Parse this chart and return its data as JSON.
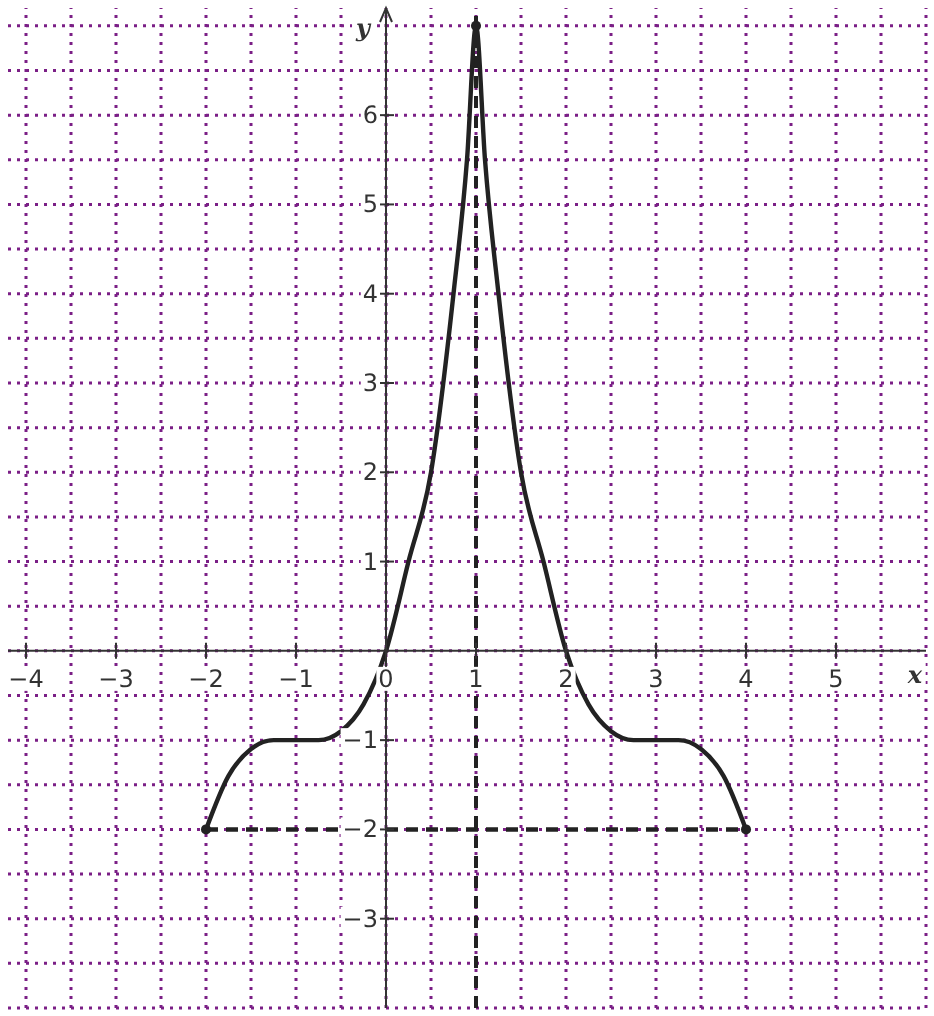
{
  "chart_data": {
    "type": "line",
    "xlabel": "x",
    "ylabel": "y",
    "xlim": [
      -4.2,
      6
    ],
    "ylim": [
      -4,
      7.2
    ],
    "xticks": [
      {
        "value": -4,
        "label": "−4"
      },
      {
        "value": -3,
        "label": "−3"
      },
      {
        "value": -2,
        "label": "−2"
      },
      {
        "value": -1,
        "label": "−1"
      },
      0,
      1,
      2,
      3,
      4,
      5
    ],
    "yticks": [
      {
        "value": -3,
        "label": "−3"
      },
      {
        "value": -2,
        "label": "−2"
      },
      {
        "value": -1,
        "label": "−1"
      },
      1,
      2,
      3,
      4,
      5,
      6
    ],
    "grid": true,
    "ref_lines": [
      {
        "axis": "x",
        "value": 1,
        "color": "#222222",
        "line_style": "dashed"
      }
    ],
    "series": [
      {
        "color": "#222222",
        "line_style": "solid",
        "x": [
          -2,
          -1.75,
          -1.5,
          -1.25,
          -1,
          -0.75,
          -0.5,
          -0.25,
          0,
          0.25,
          0.5,
          0.75,
          0.9,
          1,
          1.1,
          1.25,
          1.5,
          1.75,
          2,
          2.25,
          2.5,
          2.75,
          3,
          3.25,
          3.5,
          3.75,
          4
        ],
        "values": [
          -2,
          -1.4,
          -1.1,
          -1,
          -1,
          -1,
          -0.9,
          -0.6,
          0,
          1,
          2,
          4,
          5.5,
          7,
          5.5,
          4,
          2,
          1,
          0,
          -0.6,
          -0.9,
          -1,
          -1,
          -1,
          -1.1,
          -1.4,
          -2
        ]
      },
      {
        "type": "line",
        "color": "#222222",
        "line_style": "dashed",
        "x": [
          -2,
          4
        ],
        "values": [
          -2,
          -2
        ]
      },
      {
        "type": "scatter",
        "color": "#222222",
        "marker": "circle",
        "x": [
          -2,
          1,
          4
        ],
        "values": [
          -2,
          7,
          -2
        ]
      }
    ]
  }
}
